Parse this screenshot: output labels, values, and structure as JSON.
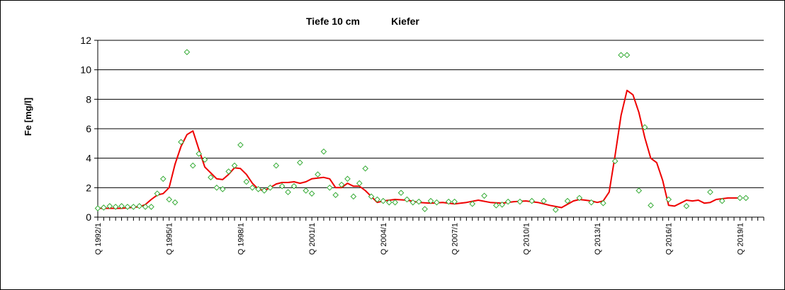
{
  "chart_data": {
    "type": "scatter",
    "title_depth": "Tiefe  10 cm",
    "title_site": "Kiefer",
    "ylabel": "Fe [mg/l]",
    "xlabel": "",
    "ylim": [
      0,
      12
    ],
    "yticks": [
      0,
      2,
      4,
      6,
      8,
      10,
      12
    ],
    "x_start_year": 1992,
    "x_end_year": 2020,
    "x_tick_labels": [
      "Q 1992/1",
      "Q 1995/1",
      "Q 1998/1",
      "Q 2001/1",
      "Q 2004/1",
      "Q 2007/1",
      "Q 2010/1",
      "Q 2013/1",
      "Q 2016/1",
      "Q 2019/1"
    ],
    "grid": "horizontal",
    "legend": "none",
    "colors": {
      "points": "#33aa33",
      "line": "#ee0000",
      "grid": "#000000"
    },
    "series": [
      {
        "kind": "points",
        "x": [
          1992.0,
          1992.25,
          1992.5,
          1992.75,
          1993.0,
          1993.25,
          1993.5,
          1993.75,
          1994.0,
          1994.25,
          1994.5,
          1994.75,
          1995.0,
          1995.25,
          1995.5,
          1995.75,
          1996.0,
          1996.25,
          1996.5,
          1996.75,
          1997.0,
          1997.25,
          1997.5,
          1997.75,
          1998.0,
          1998.25,
          1998.5,
          1998.75,
          1999.0,
          1999.25,
          1999.5,
          1999.75,
          2000.0,
          2000.25,
          2000.5,
          2000.75,
          2001.0,
          2001.25,
          2001.5,
          2001.75,
          2002.0,
          2002.25,
          2002.5,
          2002.75,
          2003.0,
          2003.25,
          2003.5,
          2003.75,
          2004.0,
          2004.25,
          2004.5,
          2004.75,
          2005.0,
          2005.25,
          2005.5,
          2005.75,
          2006.0,
          2006.25,
          2006.75,
          2007.0,
          2007.75,
          2008.25,
          2008.75,
          2009.0,
          2009.25,
          2009.75,
          2010.25,
          2010.75,
          2011.25,
          2011.75,
          2012.25,
          2012.75,
          2013.25,
          2013.75,
          2014.0,
          2014.25,
          2014.75,
          2015.0,
          2015.25,
          2016.0,
          2016.75,
          2017.75,
          2018.25,
          2019.0,
          2019.25
        ],
        "y": [
          0.6,
          0.65,
          0.75,
          0.7,
          0.75,
          0.7,
          0.7,
          0.75,
          0.7,
          0.7,
          1.6,
          2.6,
          1.2,
          1.0,
          5.1,
          11.2,
          3.5,
          4.3,
          3.9,
          2.7,
          2.0,
          1.9,
          3.1,
          3.5,
          4.9,
          2.4,
          2.0,
          1.9,
          1.8,
          2.0,
          3.5,
          2.1,
          1.7,
          2.1,
          3.7,
          1.8,
          1.6,
          2.9,
          4.45,
          2.0,
          1.5,
          2.2,
          2.6,
          1.4,
          2.3,
          3.3,
          1.4,
          1.2,
          1.1,
          1.0,
          1.0,
          1.65,
          1.2,
          1.0,
          1.05,
          0.55,
          1.1,
          1.0,
          1.05,
          1.05,
          0.9,
          1.45,
          0.8,
          0.85,
          1.05,
          1.05,
          1.1,
          1.1,
          0.5,
          1.1,
          1.3,
          1.0,
          0.95,
          3.8,
          11.0,
          11.0,
          1.8,
          6.1,
          0.8,
          1.2,
          0.75,
          1.7,
          1.1,
          1.3,
          1.3
        ]
      },
      {
        "kind": "line",
        "x": [
          1992.0,
          1993.0,
          1993.75,
          1994.0,
          1994.25,
          1994.5,
          1994.75,
          1995.0,
          1995.25,
          1995.5,
          1995.75,
          1996.0,
          1996.25,
          1996.5,
          1996.75,
          1997.0,
          1997.25,
          1997.5,
          1997.75,
          1998.0,
          1998.25,
          1998.5,
          1998.75,
          1999.0,
          1999.25,
          1999.5,
          1999.75,
          2000.0,
          2000.25,
          2000.5,
          2000.75,
          2001.0,
          2001.25,
          2001.5,
          2001.75,
          2002.0,
          2002.25,
          2002.5,
          2002.75,
          2003.0,
          2003.25,
          2003.5,
          2003.75,
          2004.0,
          2004.5,
          2005.0,
          2005.5,
          2006.0,
          2006.5,
          2007.0,
          2007.5,
          2008.0,
          2008.5,
          2009.0,
          2009.5,
          2010.0,
          2010.5,
          2011.0,
          2011.5,
          2012.0,
          2012.25,
          2012.5,
          2012.75,
          2013.0,
          2013.25,
          2013.5,
          2013.75,
          2014.0,
          2014.25,
          2014.5,
          2014.75,
          2015.0,
          2015.25,
          2015.5,
          2015.75,
          2016.0,
          2016.25,
          2016.5,
          2016.75,
          2017.0,
          2017.25,
          2017.5,
          2017.75,
          2018.0,
          2018.25,
          2018.5,
          2018.75,
          2019.0
        ],
        "y": [
          0.6,
          0.6,
          0.7,
          0.85,
          1.2,
          1.5,
          1.6,
          2.0,
          3.6,
          4.8,
          5.6,
          5.85,
          4.6,
          3.4,
          3.0,
          2.6,
          2.55,
          2.9,
          3.35,
          3.3,
          2.9,
          2.3,
          1.9,
          1.8,
          2.0,
          2.25,
          2.35,
          2.35,
          2.4,
          2.3,
          2.4,
          2.6,
          2.65,
          2.7,
          2.6,
          2.0,
          2.0,
          2.3,
          2.1,
          2.1,
          1.8,
          1.4,
          1.0,
          1.1,
          1.2,
          1.15,
          1.0,
          0.95,
          1.0,
          0.9,
          1.0,
          1.15,
          1.0,
          0.95,
          1.05,
          1.1,
          1.0,
          0.8,
          0.65,
          1.1,
          1.2,
          1.15,
          1.1,
          1.0,
          1.1,
          1.7,
          4.2,
          6.9,
          8.6,
          8.3,
          7.1,
          5.4,
          4.0,
          3.7,
          2.5,
          0.8,
          0.75,
          0.95,
          1.15,
          1.1,
          1.15,
          0.95,
          1.0,
          1.2,
          1.25,
          1.3,
          1.3,
          1.3
        ]
      }
    ]
  }
}
